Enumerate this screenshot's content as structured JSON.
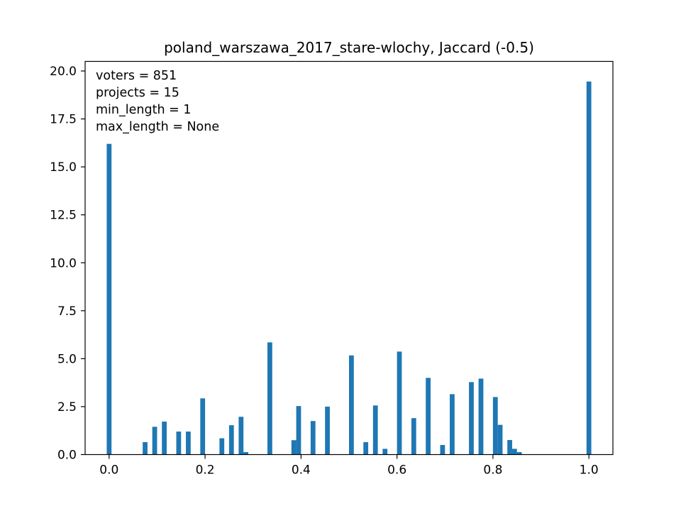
{
  "chart_data": {
    "type": "bar",
    "title": "poland_warszawa_2017_stare-wlochy, Jaccard (-0.5)",
    "xlabel": "",
    "ylabel": "",
    "xlim": [
      -0.05,
      1.05
    ],
    "ylim": [
      0,
      20.5
    ],
    "bin_width": 0.01,
    "grid": false,
    "x_ticks": [
      {
        "value": 0.0,
        "label": "0.0"
      },
      {
        "value": 0.2,
        "label": "0.2"
      },
      {
        "value": 0.4,
        "label": "0.4"
      },
      {
        "value": 0.6,
        "label": "0.6"
      },
      {
        "value": 0.8,
        "label": "0.8"
      },
      {
        "value": 1.0,
        "label": "1.0"
      }
    ],
    "y_ticks": [
      {
        "value": 0.0,
        "label": "0.0"
      },
      {
        "value": 2.5,
        "label": "2.5"
      },
      {
        "value": 5.0,
        "label": "5.0"
      },
      {
        "value": 7.5,
        "label": "7.5"
      },
      {
        "value": 10.0,
        "label": "10.0"
      },
      {
        "value": 12.5,
        "label": "12.5"
      },
      {
        "value": 15.0,
        "label": "15.0"
      },
      {
        "value": 17.5,
        "label": "17.5"
      },
      {
        "value": 20.0,
        "label": "20.0"
      }
    ],
    "annotations": [
      "voters = 851",
      "projects = 15",
      "min_length = 1",
      "max_length = None"
    ],
    "bars": [
      {
        "x": 0.0,
        "value": 16.2
      },
      {
        "x": 0.075,
        "value": 0.65
      },
      {
        "x": 0.095,
        "value": 1.45
      },
      {
        "x": 0.115,
        "value": 1.72
      },
      {
        "x": 0.145,
        "value": 1.2
      },
      {
        "x": 0.165,
        "value": 1.2
      },
      {
        "x": 0.195,
        "value": 2.93
      },
      {
        "x": 0.235,
        "value": 0.85
      },
      {
        "x": 0.255,
        "value": 1.53
      },
      {
        "x": 0.275,
        "value": 1.97
      },
      {
        "x": 0.285,
        "value": 0.13
      },
      {
        "x": 0.335,
        "value": 5.85
      },
      {
        "x": 0.385,
        "value": 0.75
      },
      {
        "x": 0.395,
        "value": 2.53
      },
      {
        "x": 0.425,
        "value": 1.75
      },
      {
        "x": 0.455,
        "value": 2.5
      },
      {
        "x": 0.505,
        "value": 5.17
      },
      {
        "x": 0.535,
        "value": 0.65
      },
      {
        "x": 0.555,
        "value": 2.56
      },
      {
        "x": 0.575,
        "value": 0.3
      },
      {
        "x": 0.605,
        "value": 5.37
      },
      {
        "x": 0.635,
        "value": 1.9
      },
      {
        "x": 0.665,
        "value": 4.0
      },
      {
        "x": 0.695,
        "value": 0.5
      },
      {
        "x": 0.715,
        "value": 3.15
      },
      {
        "x": 0.755,
        "value": 3.78
      },
      {
        "x": 0.775,
        "value": 3.96
      },
      {
        "x": 0.805,
        "value": 3.0
      },
      {
        "x": 0.815,
        "value": 1.55
      },
      {
        "x": 0.835,
        "value": 0.76
      },
      {
        "x": 0.845,
        "value": 0.3
      },
      {
        "x": 0.855,
        "value": 0.13
      },
      {
        "x": 1.0,
        "value": 19.45
      }
    ],
    "bar_color": "#1f77b4"
  }
}
